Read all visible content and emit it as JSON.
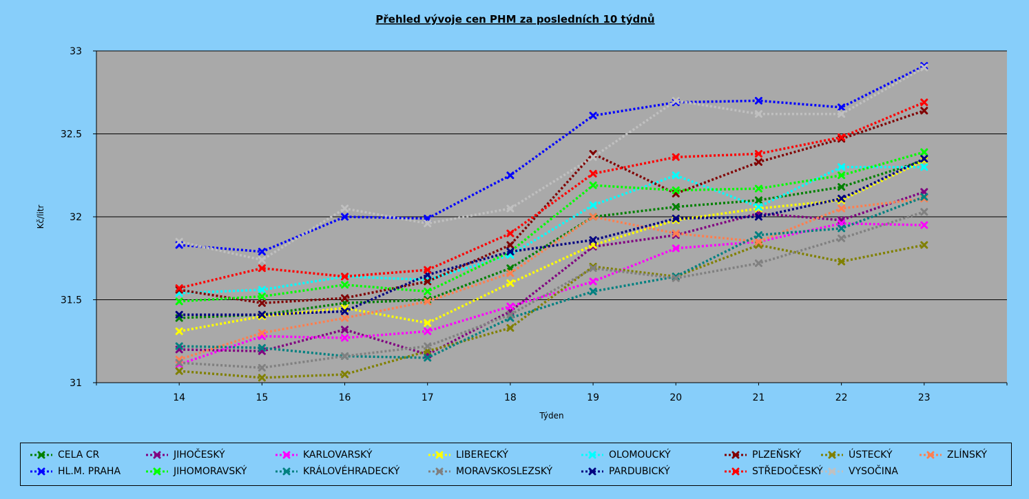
{
  "chart_data": {
    "type": "line",
    "title": "Přehled vývoje cen PHM za posledních 10 týdnů",
    "xlabel": "Týden",
    "ylabel": "Kč/litr",
    "x": [
      14,
      15,
      16,
      17,
      18,
      19,
      20,
      21,
      22,
      23
    ],
    "xlim": [
      13,
      24
    ],
    "ylim": [
      31,
      33
    ],
    "yticks": [
      31,
      31.5,
      32,
      32.5,
      33
    ],
    "grid": "horizontal",
    "legend_position": "bottom",
    "series": [
      {
        "name": "CELA CR",
        "color": "#008000",
        "values": [
          31.39,
          31.41,
          31.48,
          31.5,
          31.69,
          32.0,
          32.06,
          32.1,
          32.18,
          32.34
        ]
      },
      {
        "name": "JIHOČESKÝ",
        "color": "#800080",
        "values": [
          31.2,
          31.19,
          31.32,
          31.17,
          31.43,
          31.82,
          31.89,
          32.02,
          31.98,
          32.15
        ]
      },
      {
        "name": "KARLOVARSKÝ",
        "color": "#ff00ff",
        "values": [
          31.11,
          31.28,
          31.27,
          31.31,
          31.46,
          31.61,
          31.81,
          31.85,
          31.96,
          31.95
        ]
      },
      {
        "name": "LIBERECKÝ",
        "color": "#ffff00",
        "values": [
          31.31,
          31.4,
          31.45,
          31.36,
          31.6,
          31.83,
          31.98,
          32.05,
          32.1,
          32.34
        ]
      },
      {
        "name": "OLOMOUCKÝ",
        "color": "#00ffff",
        "values": [
          31.54,
          31.56,
          31.64,
          31.62,
          31.77,
          32.07,
          32.25,
          32.06,
          32.3,
          32.3
        ]
      },
      {
        "name": "PLZEŇSKÝ",
        "color": "#800000",
        "values": [
          31.56,
          31.48,
          31.51,
          31.61,
          31.83,
          32.38,
          32.14,
          32.33,
          32.47,
          32.64
        ]
      },
      {
        "name": "ÚSTECKÝ",
        "color": "#808000",
        "values": [
          31.07,
          31.03,
          31.05,
          31.19,
          31.33,
          31.7,
          31.64,
          31.83,
          31.73,
          31.83
        ]
      },
      {
        "name": "ZLÍNSKÝ",
        "color": "#ff7f50",
        "values": [
          31.14,
          31.3,
          31.39,
          31.49,
          31.66,
          32.0,
          31.9,
          31.85,
          32.05,
          32.11
        ]
      },
      {
        "name": "HL.M. PRAHA",
        "color": "#0000ff",
        "values": [
          31.83,
          31.79,
          32.0,
          31.99,
          32.25,
          32.61,
          32.69,
          32.7,
          32.66,
          32.91
        ]
      },
      {
        "name": "JIHOMORAVSKÝ",
        "color": "#00ff00",
        "values": [
          31.49,
          31.52,
          31.59,
          31.55,
          31.79,
          32.19,
          32.16,
          32.17,
          32.25,
          32.39
        ]
      },
      {
        "name": "KRÁLOVÉHRADECKÝ",
        "color": "#008080",
        "values": [
          31.22,
          31.21,
          31.16,
          31.15,
          31.39,
          31.55,
          31.64,
          31.89,
          31.93,
          32.12
        ]
      },
      {
        "name": "MORAVSKOSLEZSKÝ",
        "color": "#808080",
        "values": [
          31.12,
          31.09,
          31.16,
          31.22,
          31.41,
          31.69,
          31.63,
          31.72,
          31.87,
          32.03
        ]
      },
      {
        "name": "PARDUBICKÝ",
        "color": "#000080",
        "values": [
          31.41,
          31.41,
          31.43,
          31.65,
          31.79,
          31.86,
          31.99,
          32.0,
          32.11,
          32.35
        ]
      },
      {
        "name": "STŘEDOČESKÝ",
        "color": "#ff0000",
        "values": [
          31.57,
          31.69,
          31.64,
          31.68,
          31.9,
          32.26,
          32.36,
          32.38,
          32.48,
          32.69
        ]
      },
      {
        "name": "VYSOČINA",
        "color": "#c0c0c0",
        "values": [
          31.85,
          31.74,
          32.05,
          31.96,
          32.05,
          32.36,
          32.7,
          32.62,
          32.62,
          32.9
        ]
      }
    ]
  }
}
